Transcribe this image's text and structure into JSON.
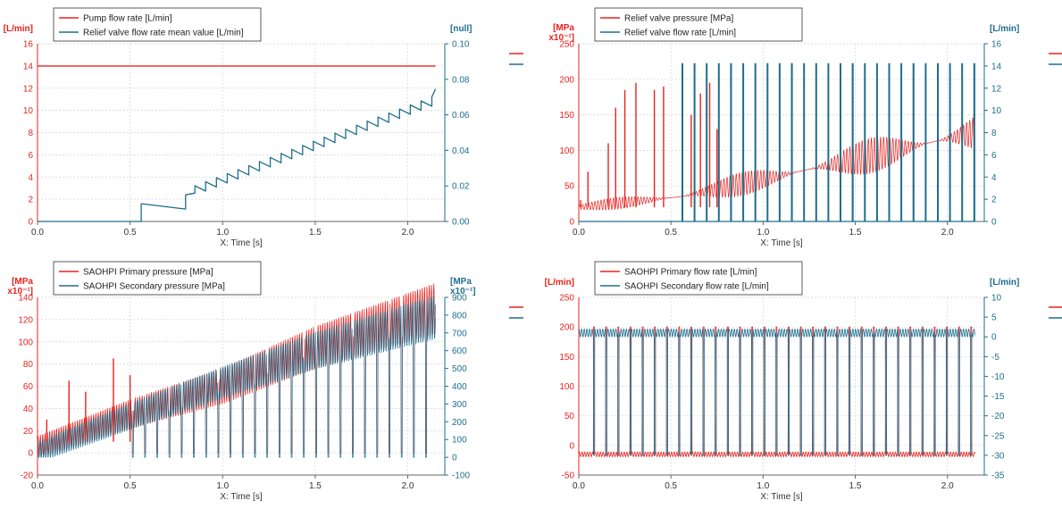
{
  "colors": {
    "red": "#e8231f",
    "blue": "#1e6e8c",
    "grid": "#d4d4d4",
    "axis": "#666666"
  },
  "chart_data": [
    {
      "type": "line",
      "xlabel": "X: Time [s]",
      "xlim": [
        0,
        2.2
      ],
      "xticks": [
        "0.0",
        "0.5",
        "1.0",
        "1.5",
        "2.0"
      ],
      "left_axis": {
        "unit": "[L/min]",
        "ylim": [
          0,
          16
        ],
        "ticks": [
          "0",
          "2",
          "4",
          "6",
          "8",
          "10",
          "12",
          "14",
          "16"
        ]
      },
      "right_axis": {
        "unit": "[null]",
        "ylim": [
          0,
          0.1
        ],
        "ticks": [
          "0.00",
          "0.02",
          "0.04",
          "0.06",
          "0.08",
          "0.10"
        ]
      },
      "legend": [
        "Pump flow rate [L/min]",
        "Relief valve flow rate mean value [L/min]"
      ],
      "series": [
        {
          "name": "Pump flow rate [L/min]",
          "axis": "left",
          "color": "red",
          "x": [
            0,
            2.15
          ],
          "y": [
            14,
            14
          ]
        },
        {
          "name": "Relief valve flow rate mean value [L/min]",
          "axis": "right",
          "color": "blue",
          "x": [
            0,
            0.56,
            0.56,
            0.8,
            0.8,
            0.85,
            0.85,
            2.13,
            2.15
          ],
          "y": [
            0,
            0,
            0.01,
            0.007,
            0.015,
            0.016,
            0.0201,
            0.0701,
            0.0745
          ]
        }
      ]
    },
    {
      "type": "line",
      "xlabel": "X: Time [s]",
      "xlim": [
        0,
        2.2
      ],
      "xticks": [
        "0.0",
        "0.5",
        "1.0",
        "1.5",
        "2.0"
      ],
      "left_axis": {
        "unit": "[MPa x10⁻¹]",
        "ylim": [
          0,
          250
        ],
        "ticks": [
          "0",
          "50",
          "100",
          "150",
          "200",
          "250"
        ]
      },
      "right_axis": {
        "unit": "[L/min]",
        "ylim": [
          0,
          16
        ],
        "ticks": [
          "0",
          "2",
          "4",
          "6",
          "8",
          "10",
          "12",
          "14",
          "16"
        ]
      },
      "legend": [
        "Relief valve pressure [MPa]",
        "Relief valve flow rate [L/min]"
      ],
      "series": [
        {
          "name": "Relief valve pressure [MPa]",
          "axis": "left",
          "color": "red",
          "x": [
            0,
            0.56,
            0.75,
            2.15
          ],
          "y": [
            20,
            35,
            45,
            125
          ],
          "spikes": [
            [
              0.01,
              30
            ],
            [
              0.05,
              70
            ],
            [
              0.16,
              110
            ],
            [
              0.2,
              160
            ],
            [
              0.25,
              185
            ],
            [
              0.31,
              195
            ],
            [
              0.41,
              185
            ],
            [
              0.46,
              190
            ],
            [
              0.61,
              150
            ],
            [
              0.66,
              180
            ],
            [
              0.71,
              195
            ],
            [
              0.75,
              130
            ]
          ]
        },
        {
          "name": "Relief valve flow rate [L/min]",
          "axis": "right",
          "color": "blue",
          "pulse_start": 0.56,
          "pulse_period": 0.066,
          "pulse_value": 14.2
        }
      ]
    },
    {
      "type": "line",
      "xlabel": "X: Time [s]",
      "xlim": [
        0,
        2.2
      ],
      "xticks": [
        "0.0",
        "0.5",
        "1.0",
        "1.5",
        "2.0"
      ],
      "left_axis": {
        "unit": "[MPa x10⁻¹]",
        "ylim": [
          -20,
          140
        ],
        "ticks": [
          "-20",
          "0",
          "20",
          "40",
          "60",
          "80",
          "100",
          "120",
          "140"
        ]
      },
      "right_axis": {
        "unit": "[MPa x10⁻¹]",
        "ylim": [
          -100,
          900
        ],
        "ticks": [
          "-100",
          "0",
          "100",
          "200",
          "300",
          "400",
          "500",
          "600",
          "700",
          "800",
          "900"
        ]
      },
      "legend": [
        "SAOHPI Primary pressure [MPa]",
        "SAOHPI Secondary pressure [MPa]"
      ],
      "series": [
        {
          "name": "SAOHPI Primary pressure [MPa]",
          "axis": "left",
          "color": "red",
          "x": [
            0,
            0.5,
            1.0,
            1.5,
            2.15
          ],
          "y": [
            5,
            35,
            60,
            95,
            130
          ],
          "spikes": [
            [
              0.05,
              30
            ],
            [
              0.17,
              65
            ],
            [
              0.26,
              55
            ],
            [
              0.41,
              85
            ],
            [
              0.5,
              70
            ]
          ]
        },
        {
          "name": "SAOHPI Secondary pressure [MPa]",
          "axis": "right",
          "color": "blue",
          "x": [
            0,
            0.5,
            1.0,
            1.5,
            2.15
          ],
          "y": [
            30,
            230,
            420,
            600,
            790
          ]
        }
      ]
    },
    {
      "type": "line",
      "xlabel": "X: Time [s]",
      "xlim": [
        0,
        2.2
      ],
      "xticks": [
        "0.0",
        "0.5",
        "1.0",
        "1.5",
        "2.0"
      ],
      "left_axis": {
        "unit": "[L/min]",
        "ylim": [
          -50,
          250
        ],
        "ticks": [
          "-50",
          "0",
          "50",
          "100",
          "150",
          "200",
          "250"
        ]
      },
      "right_axis": {
        "unit": "[L/min]",
        "ylim": [
          -35,
          10
        ],
        "ticks": [
          "-35",
          "-30",
          "-25",
          "-20",
          "-15",
          "-10",
          "-5",
          "0",
          "5",
          "10"
        ]
      },
      "legend": [
        "SAOHPI Primary flow rate [L/min]",
        "SAOHPI Secondary flow rate [L/min]"
      ],
      "series": [
        {
          "name": "SAOHPI Primary flow rate [L/min]",
          "axis": "left",
          "color": "red",
          "base": -15,
          "pulse_value": 200
        },
        {
          "name": "SAOHPI Secondary flow rate [L/min]",
          "axis": "right",
          "color": "blue",
          "base": 1,
          "pulse_value": -30
        }
      ]
    }
  ]
}
